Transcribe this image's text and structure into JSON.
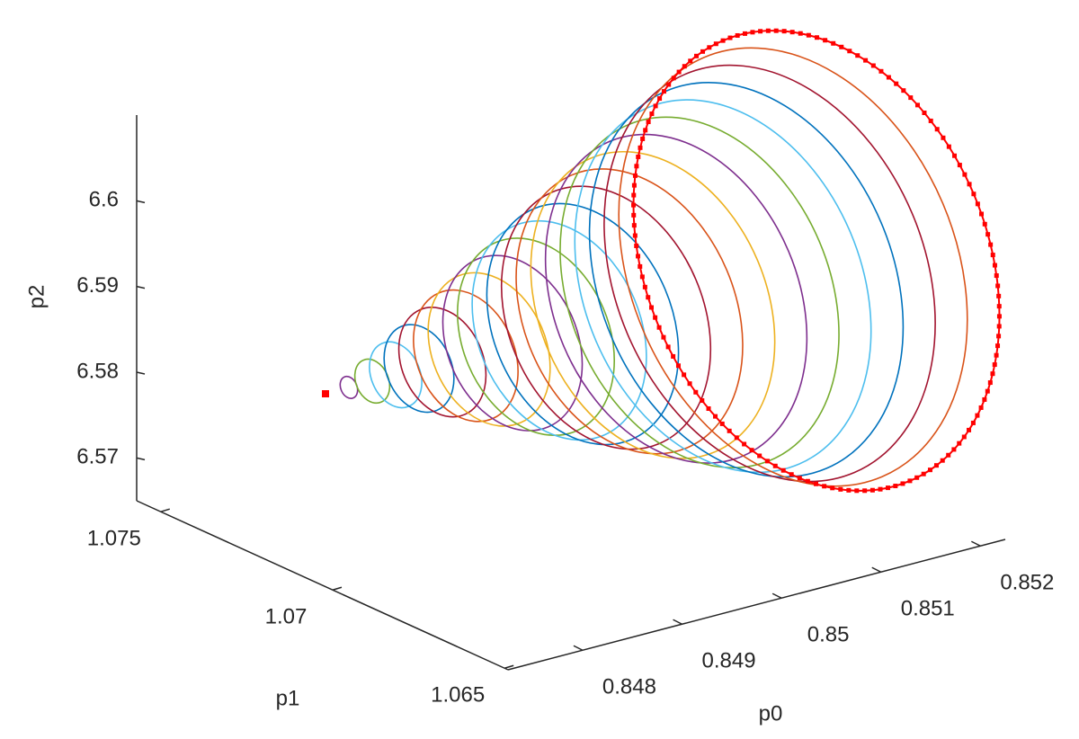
{
  "chart_data": {
    "type": "3d-line",
    "xlabel": "p0",
    "ylabel": "p1",
    "zlabel": "p2",
    "xlim": [
      0.84725,
      0.85225
    ],
    "xticks": [
      0.848,
      0.849,
      0.85,
      0.851,
      0.852
    ],
    "ylim": [
      1.0649,
      1.0757
    ],
    "yticks": [
      1.065,
      1.07,
      1.075
    ],
    "zlim": [
      6.565,
      6.61
    ],
    "zticks": [
      6.57,
      6.58,
      6.59,
      6.6
    ]
  }
}
